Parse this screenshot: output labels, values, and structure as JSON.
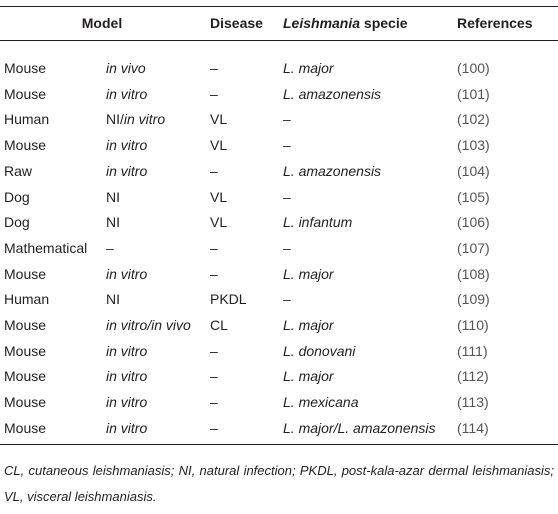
{
  "table": {
    "header": [
      "Model",
      "Disease",
      [
        {
          "text": "Leishmania",
          "italic": true
        },
        {
          "text": " specie",
          "italic": false
        }
      ],
      "References"
    ],
    "columns_italic": [
      false,
      true,
      false,
      true,
      false
    ],
    "rows": [
      [
        "Mouse",
        "in vivo",
        "–",
        "L. major",
        "(100)"
      ],
      [
        "Mouse",
        "in vitro",
        "–",
        "L. amazonensis",
        "(101)"
      ],
      [
        "Human",
        [
          {
            "text": "NI/",
            "italic": false
          },
          {
            "text": "in vitro",
            "italic": true
          }
        ],
        "VL",
        "–",
        "(102)"
      ],
      [
        "Mouse",
        "in vitro",
        "VL",
        "–",
        "(103)"
      ],
      [
        "Raw",
        "in vitro",
        "–",
        "L. amazonensis",
        "(104)"
      ],
      [
        "Dog",
        [
          {
            "text": "NI",
            "italic": false
          }
        ],
        "VL",
        "–",
        "(105)"
      ],
      [
        "Dog",
        [
          {
            "text": "NI",
            "italic": false
          }
        ],
        "VL",
        "L. infantum",
        "(106)"
      ],
      [
        "Mathematical",
        "–",
        "–",
        "–",
        "(107)"
      ],
      [
        "Mouse",
        "in vitro",
        "–",
        "L. major",
        "(108)"
      ],
      [
        "Human",
        [
          {
            "text": "NI",
            "italic": false
          }
        ],
        "PKDL",
        "–",
        "(109)"
      ],
      [
        "Mouse",
        "in vitro/in vivo",
        "CL",
        "L. major",
        "(110)"
      ],
      [
        "Mouse",
        "in vitro",
        "–",
        "L. donovani",
        "(111)"
      ],
      [
        "Mouse",
        "in vitro",
        "–",
        "L. major",
        "(112)"
      ],
      [
        "Mouse",
        "in vitro",
        "–",
        "L. mexicana",
        "(113)"
      ],
      [
        "Mouse",
        "in vitro",
        "–",
        "L. major/L. amazonensis",
        "(114)"
      ]
    ]
  },
  "footnote": "CL, cutaneous leishmaniasis; NI, natural infection; PKDL, post-kala-azar dermal leishmaniasis; VL, visceral leishmaniasis."
}
